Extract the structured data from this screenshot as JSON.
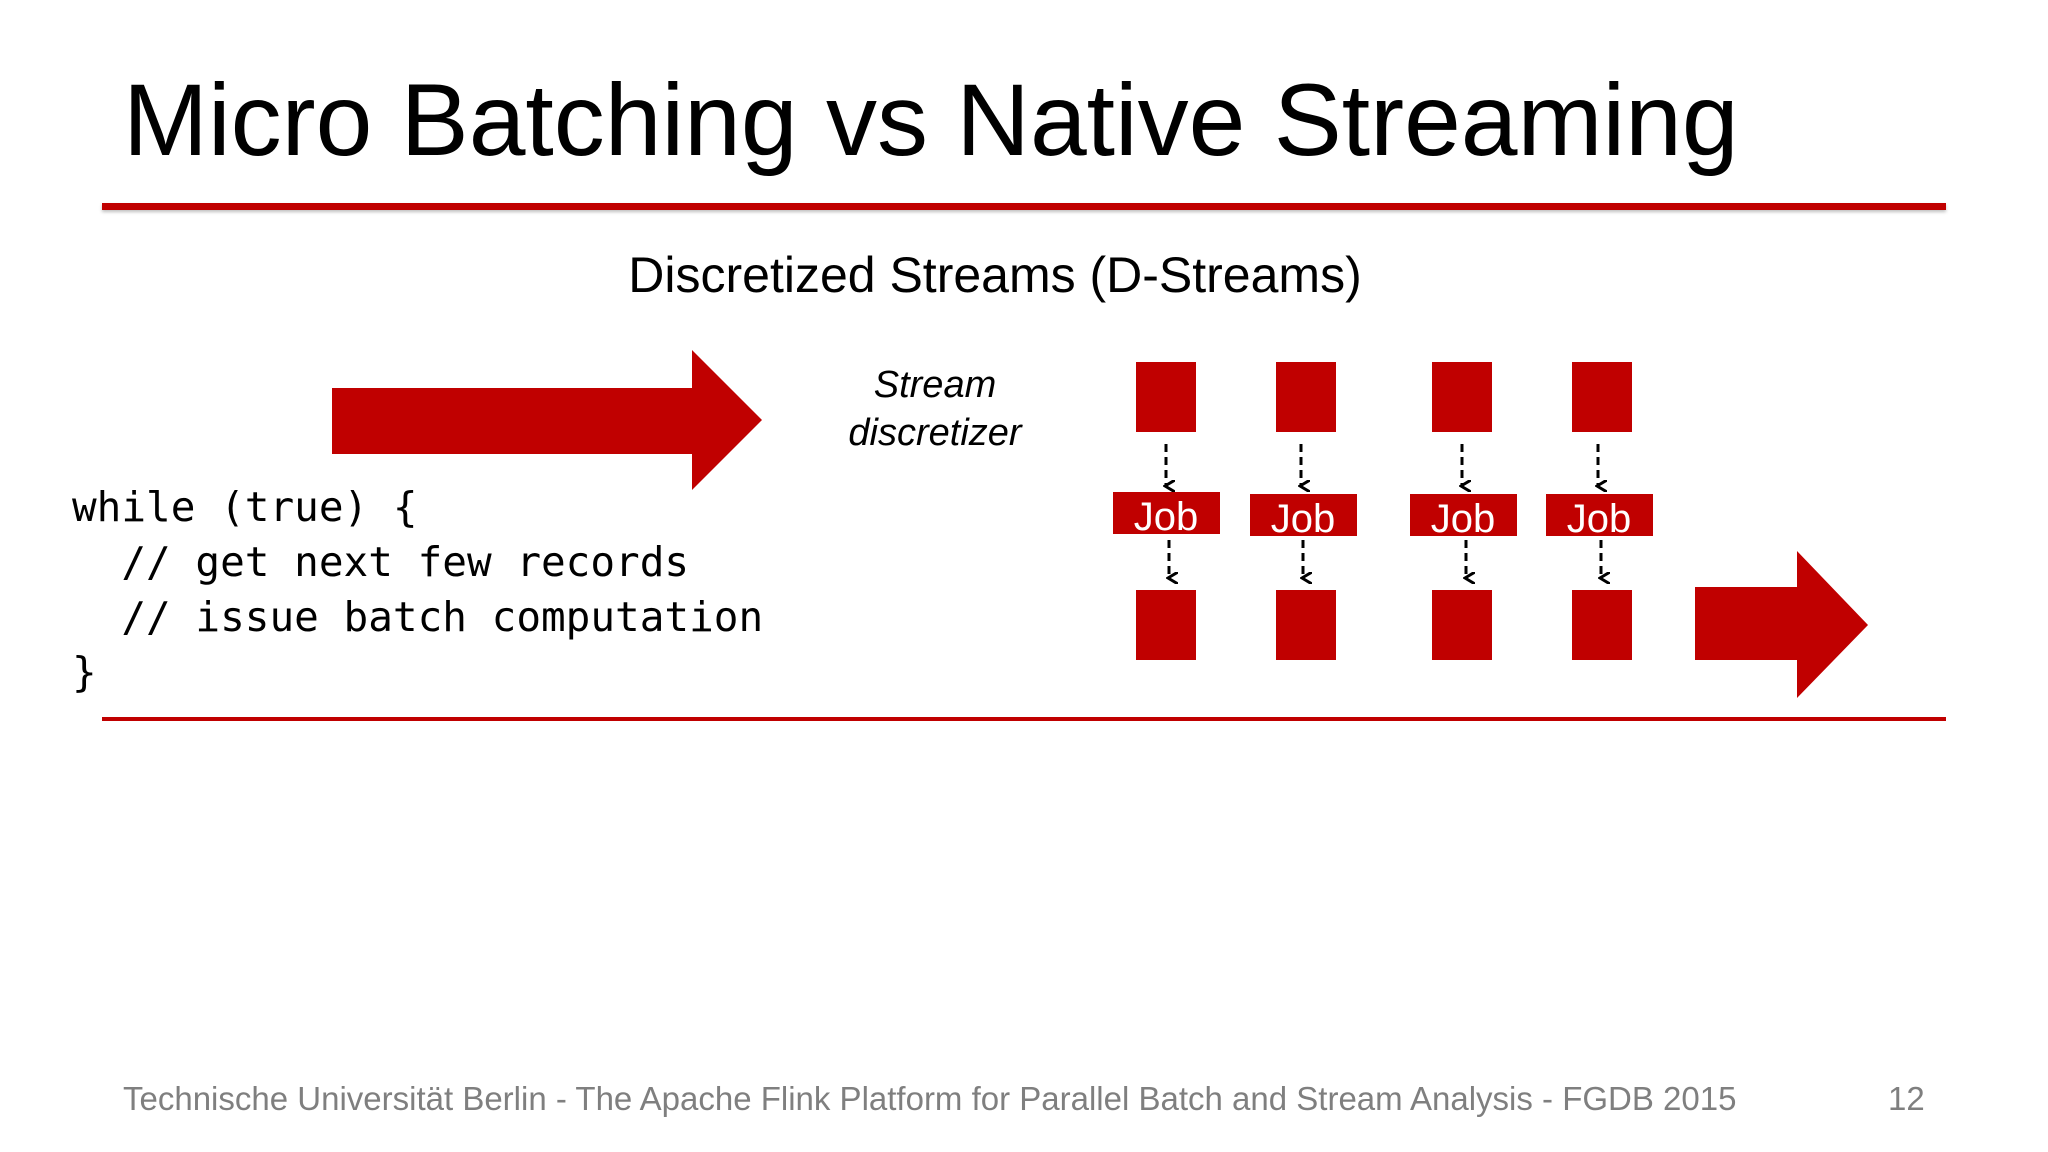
{
  "slide": {
    "title": "Micro Batching vs Native Streaming",
    "subtitle": "Discretized Streams (D-Streams)",
    "discretizer_label": "Stream discretizer",
    "code_lines": [
      "while (true) {",
      "  // get next few records",
      "  // issue batch computation",
      "}"
    ],
    "job_label": "Job",
    "footer": "Technische Universität Berlin - The Apache Flink Platform for Parallel Batch and Stream Analysis - FGDB 2015",
    "page_number": "12"
  },
  "colors": {
    "accent": "#c00000",
    "footer_text": "#7f7f7f"
  }
}
